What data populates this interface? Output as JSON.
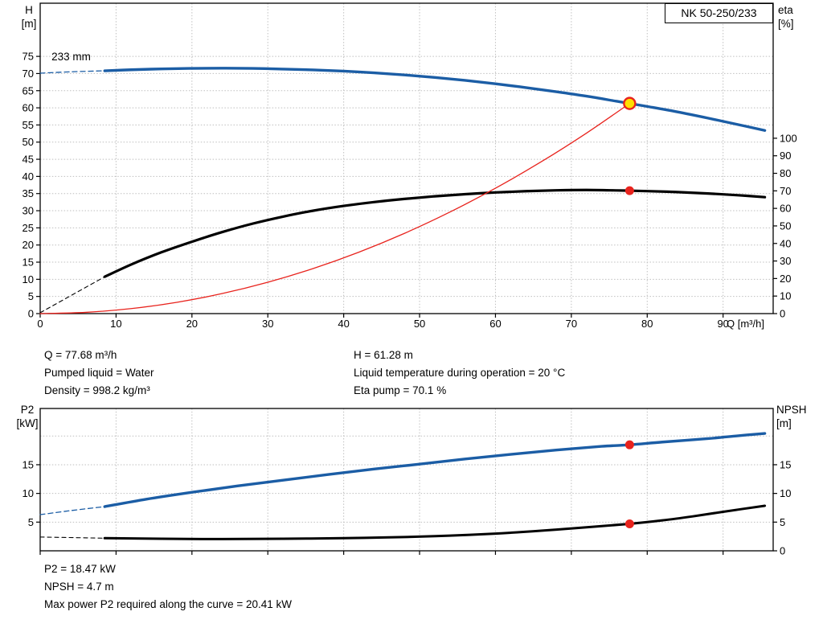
{
  "pump_model": "NK 50-250/233",
  "labels": {
    "top_left_1": "H",
    "top_left_2": "[m]",
    "top_right_1": "eta",
    "top_right_2": "[%]",
    "bottom_left_1": "P2",
    "bottom_left_2": "[kW]",
    "bottom_right_1": "NPSH",
    "bottom_right_2": "[m]"
  },
  "info_top": {
    "col1": {
      "line1": "Q = 77.68 m³/h",
      "line2": "Pumped liquid = Water",
      "line3": "Density = 998.2 kg/m³"
    },
    "col2": {
      "line1": "H = 61.28 m",
      "line2": "Liquid temperature during operation = 20 °C",
      "line3": "Eta pump = 70.1 %"
    }
  },
  "info_bottom": {
    "line1": "P2 = 18.47 kW",
    "line2": "NPSH = 4.7 m",
    "line3": "Max power P2 required along the curve = 20.41 kW"
  },
  "colors": {
    "curve_blue": "#1b5da5",
    "curve_black": "#000000",
    "duty_red": "#e8231d",
    "duty_yellow": "#ffdf00",
    "grid_gray": "#bfbfbf"
  },
  "chart_data": [
    {
      "id": "top",
      "type": "line",
      "title": "NK 50-250/233 pump performance curve (H/Q and efficiency)",
      "x_axis": {
        "min": 0,
        "max": 96.6,
        "ticks": [
          0,
          10,
          20,
          30,
          40,
          50,
          60,
          70,
          80,
          90
        ],
        "label": "Q [m³/h]",
        "show_tick_labels": true
      },
      "left_axis": {
        "title": "H [m]",
        "min": 0,
        "max": 90.5,
        "ticks": [
          0,
          5,
          10,
          15,
          20,
          25,
          30,
          35,
          40,
          45,
          50,
          55,
          60,
          65,
          70,
          75
        ],
        "grid": [
          5,
          10,
          15,
          20,
          25,
          30,
          35,
          40,
          45,
          50,
          55,
          60,
          65,
          70,
          75
        ]
      },
      "right_axis": {
        "title": "eta [%]",
        "min": 0,
        "max": 177,
        "ticks": [
          0,
          10,
          20,
          30,
          40,
          50,
          60,
          70,
          80,
          90,
          100
        ]
      },
      "series": [
        {
          "name": "head-curve-lead-dashed",
          "axis": "left",
          "color": "#1b5da5",
          "width": 1.3,
          "dash": "6 4",
          "points": [
            [
              0,
              70.1
            ],
            [
              4,
              70.5
            ],
            [
              8.5,
              70.8
            ]
          ]
        },
        {
          "name": "head-curve-233mm",
          "axis": "left",
          "color": "#1b5da5",
          "width": 3.4,
          "dash": null,
          "points": [
            [
              8.5,
              70.8
            ],
            [
              12,
              71.1
            ],
            [
              16,
              71.35
            ],
            [
              20,
              71.5
            ],
            [
              24,
              71.55
            ],
            [
              28,
              71.5
            ],
            [
              32,
              71.3
            ],
            [
              36,
              71.05
            ],
            [
              40,
              70.7
            ],
            [
              44,
              70.2
            ],
            [
              48,
              69.6
            ],
            [
              52,
              68.85
            ],
            [
              56,
              68.0
            ],
            [
              60,
              67.0
            ],
            [
              64,
              65.9
            ],
            [
              68,
              64.7
            ],
            [
              72,
              63.4
            ],
            [
              76,
              61.9
            ],
            [
              77.68,
              61.28
            ],
            [
              80,
              60.4
            ],
            [
              84,
              58.8
            ],
            [
              88,
              57.0
            ],
            [
              92,
              55.1
            ],
            [
              95.5,
              53.4
            ]
          ]
        },
        {
          "name": "efficiency-curve-lead-dashed",
          "axis": "right",
          "color": "#000000",
          "width": 1.1,
          "dash": "5 4",
          "points": [
            [
              0,
              0.5
            ],
            [
              8.5,
              21
            ]
          ]
        },
        {
          "name": "efficiency-curve",
          "axis": "right",
          "color": "#000000",
          "width": 3.2,
          "dash": null,
          "points": [
            [
              8.5,
              21
            ],
            [
              12,
              28
            ],
            [
              16,
              35
            ],
            [
              20,
              41
            ],
            [
              24,
              46.5
            ],
            [
              28,
              51.3
            ],
            [
              32,
              55.3
            ],
            [
              36,
              58.7
            ],
            [
              40,
              61.4
            ],
            [
              44,
              63.6
            ],
            [
              48,
              65.4
            ],
            [
              52,
              66.9
            ],
            [
              56,
              68.1
            ],
            [
              60,
              69.1
            ],
            [
              64,
              69.8
            ],
            [
              68,
              70.3
            ],
            [
              72,
              70.5
            ],
            [
              76,
              70.25
            ],
            [
              77.68,
              70.1
            ],
            [
              80,
              69.85
            ],
            [
              84,
              69.3
            ],
            [
              88,
              68.5
            ],
            [
              92,
              67.5
            ],
            [
              95.5,
              66.4
            ]
          ]
        },
        {
          "name": "duty-parabola",
          "axis": "left",
          "color": "#e8231d",
          "width": 1.3,
          "dash": null,
          "points": [
            [
              0,
              0
            ],
            [
              6,
              0.37
            ],
            [
              12,
              1.46
            ],
            [
              18,
              3.29
            ],
            [
              24,
              5.85
            ],
            [
              30,
              9.14
            ],
            [
              36,
              13.16
            ],
            [
              42,
              17.91
            ],
            [
              48,
              23.39
            ],
            [
              54,
              29.61
            ],
            [
              60,
              36.55
            ],
            [
              66,
              44.23
            ],
            [
              72,
              52.63
            ],
            [
              77.68,
              61.28
            ]
          ]
        }
      ],
      "markers": [
        {
          "name": "duty-point-hq",
          "axis": "left",
          "q": 77.68,
          "v": 61.28,
          "r": 7,
          "fill": "#ffdf00",
          "stroke": "#e8231d",
          "stroke_width": 2.4
        },
        {
          "name": "duty-point-eta",
          "axis": "right",
          "q": 77.68,
          "v": 70.1,
          "r": 5.5,
          "fill": "#e8231d"
        }
      ],
      "annotations": [
        {
          "name": "impeller-diameter-label",
          "text": "233 mm",
          "axis": "left",
          "q": 1.5,
          "v": 73.8
        }
      ]
    },
    {
      "id": "bottom",
      "type": "line",
      "title": "P2 power and NPSH curves",
      "x_axis": {
        "min": 0,
        "max": 96.6,
        "ticks": [
          0,
          10,
          20,
          30,
          40,
          50,
          60,
          70,
          80,
          90
        ],
        "label": "",
        "show_tick_labels": false
      },
      "left_axis": {
        "title": "P2 [kW]",
        "min": 0,
        "max": 24.8,
        "ticks": [
          5,
          10,
          15
        ],
        "grid": [
          5,
          10,
          15,
          20
        ]
      },
      "right_axis": {
        "title": "NPSH [m]",
        "min": 0,
        "max": 24.8,
        "ticks": [
          0,
          5,
          10,
          15
        ]
      },
      "series": [
        {
          "name": "p2-curve-lead-dashed",
          "axis": "left",
          "color": "#1b5da5",
          "width": 1.3,
          "dash": "6 4",
          "points": [
            [
              0,
              6.3
            ],
            [
              4,
              7.0
            ],
            [
              8.5,
              7.7
            ]
          ]
        },
        {
          "name": "p2-curve",
          "axis": "left",
          "color": "#1b5da5",
          "width": 3.4,
          "dash": null,
          "points": [
            [
              8.5,
              7.7
            ],
            [
              14,
              9.0
            ],
            [
              20,
              10.2
            ],
            [
              26,
              11.3
            ],
            [
              32,
              12.3
            ],
            [
              38,
              13.3
            ],
            [
              44,
              14.25
            ],
            [
              50,
              15.1
            ],
            [
              56,
              16.0
            ],
            [
              62,
              16.8
            ],
            [
              68,
              17.55
            ],
            [
              74,
              18.2
            ],
            [
              77.68,
              18.47
            ],
            [
              82,
              18.95
            ],
            [
              88,
              19.55
            ],
            [
              92,
              20.05
            ],
            [
              95.5,
              20.45
            ]
          ]
        },
        {
          "name": "npsh-curve-lead-dashed",
          "axis": "right",
          "color": "#000000",
          "width": 1.1,
          "dash": "5 4",
          "points": [
            [
              0,
              2.4
            ],
            [
              8.5,
              2.2
            ]
          ]
        },
        {
          "name": "npsh-curve",
          "axis": "right",
          "color": "#000000",
          "width": 3.0,
          "dash": null,
          "points": [
            [
              8.5,
              2.2
            ],
            [
              16,
              2.1
            ],
            [
              24,
              2.05
            ],
            [
              32,
              2.1
            ],
            [
              40,
              2.2
            ],
            [
              48,
              2.4
            ],
            [
              54,
              2.65
            ],
            [
              60,
              3.0
            ],
            [
              66,
              3.5
            ],
            [
              72,
              4.1
            ],
            [
              77.68,
              4.7
            ],
            [
              82,
              5.3
            ],
            [
              86,
              6.0
            ],
            [
              90,
              6.8
            ],
            [
              95.5,
              7.85
            ]
          ]
        }
      ],
      "markers": [
        {
          "name": "duty-point-p2",
          "axis": "left",
          "q": 77.68,
          "v": 18.47,
          "r": 5.5,
          "fill": "#e8231d"
        },
        {
          "name": "duty-point-npsh",
          "axis": "right",
          "q": 77.68,
          "v": 4.7,
          "r": 5.5,
          "fill": "#e8231d"
        }
      ]
    }
  ]
}
